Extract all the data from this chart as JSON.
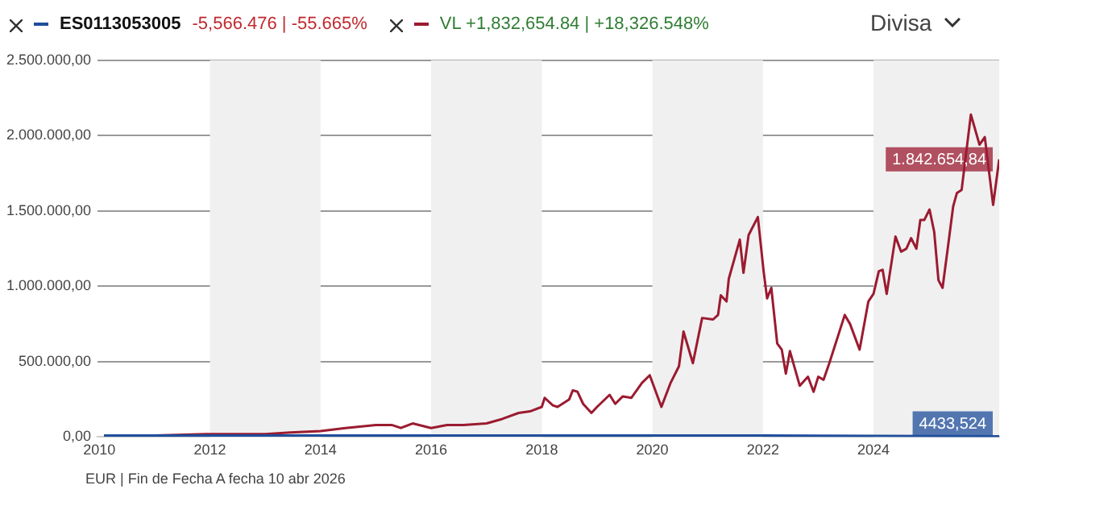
{
  "chart_data": {
    "type": "line",
    "legend": "top left",
    "grid": "y",
    "marker": "none",
    "line_style": "solid",
    "xlim": [
      "2009-12-20",
      "2026-04-10"
    ],
    "xticks": [
      "2010",
      "2012",
      "2014",
      "2016",
      "2018",
      "2020",
      "2022",
      "2024"
    ],
    "ylim": [
      0,
      2500000
    ],
    "yticks": [
      {
        "value": 0,
        "label": "0,00"
      },
      {
        "value": 500000,
        "label": "500.000,00"
      },
      {
        "value": 1000000,
        "label": "1.000.000,00"
      },
      {
        "value": 1500000,
        "label": "1.500.000,00"
      },
      {
        "value": 2000000,
        "label": "2.000.000,00"
      },
      {
        "value": 2500000,
        "label": "2.500.000,00"
      }
    ],
    "bands": [
      {
        "axis": "x",
        "from": "2012",
        "to": "2014",
        "color": "#f0f0f0"
      },
      {
        "axis": "x",
        "from": "2016",
        "to": "2018",
        "color": "#f0f0f0"
      },
      {
        "axis": "x",
        "from": "2020",
        "to": "2022",
        "color": "#f0f0f0"
      },
      {
        "axis": "x",
        "from": "2024",
        "to": "2026-04-10",
        "color": "#f0f0f0"
      }
    ],
    "annotations": [
      "-5,566.476 | -55.665%",
      "VL +1,832,654.84 | +18,326.548%",
      "Divisa",
      "EUR | Fin de Fecha A fecha 10 abr 2026",
      {
        "text": "1.842.654,84",
        "x": "2026-04-10",
        "y": 1842654.84
      },
      {
        "text": "4433,524",
        "x": "2026-04-10",
        "y": 4433.524
      }
    ],
    "series": [
      {
        "name": "ES0113053005",
        "color": "#1f4e9c",
        "x": [
          "2010-02-01",
          "2014-01-01",
          "2018-01-01",
          "2022-01-01",
          "2026-04-10"
        ],
        "values": [
          10000,
          10000,
          10000,
          10000,
          4433.524
        ]
      },
      {
        "color": "#9b1b30",
        "x": [
          "2010-02-01",
          "2011-01-01",
          "2012-01-01",
          "2013-01-01",
          "2013-06-15",
          "2014-01-01",
          "2014-06-15",
          "2015-01-01",
          "2015-04-15",
          "2015-06-15",
          "2015-09-01",
          "2016-01-01",
          "2016-04-15",
          "2016-08-01",
          "2017-01-01",
          "2017-04-15",
          "2017-08-01",
          "2017-10-15",
          "2018-01-01",
          "2018-01-20",
          "2018-03-15",
          "2018-04-15",
          "2018-07-01",
          "2018-07-25",
          "2018-08-25",
          "2018-10-01",
          "2018-11-25",
          "2019-01-01",
          "2019-03-25",
          "2019-05-01",
          "2019-06-20",
          "2019-08-15",
          "2019-10-25",
          "2019-12-15",
          "2020-03-01",
          "2020-05-01",
          "2020-06-25",
          "2020-07-25",
          "2020-09-25",
          "2020-11-25",
          "2021-02-05",
          "2021-03-10",
          "2021-03-28",
          "2021-05-05",
          "2021-05-20",
          "2021-08-01",
          "2021-08-25",
          "2021-09-28",
          "2021-11-28",
          "2022-01-05",
          "2022-01-28",
          "2022-02-25",
          "2022-04-05",
          "2022-05-05",
          "2022-06-01",
          "2022-06-28",
          "2022-09-01",
          "2022-10-25",
          "2022-12-01",
          "2023-01-01",
          "2023-02-05",
          "2023-03-15",
          "2023-06-25",
          "2023-07-30",
          "2023-10-01",
          "2023-11-28",
          "2024-01-01",
          "2024-02-05",
          "2024-03-01",
          "2024-03-28",
          "2024-05-25",
          "2024-07-01",
          "2024-08-05",
          "2024-09-05",
          "2024-10-10",
          "2024-11-05",
          "2024-12-01",
          "2025-01-05",
          "2025-02-05",
          "2025-03-05",
          "2025-04-01",
          "2025-05-05",
          "2025-06-10",
          "2025-07-05",
          "2025-08-05",
          "2025-10-05",
          "2025-12-01",
          "2026-01-05",
          "2026-03-01",
          "2026-04-10"
        ],
        "values": [
          10000,
          10000,
          20000,
          20000,
          30000,
          40000,
          60000,
          80000,
          80000,
          60000,
          90000,
          60000,
          80000,
          80000,
          90000,
          120000,
          160000,
          170000,
          200000,
          260000,
          210000,
          200000,
          250000,
          310000,
          300000,
          220000,
          160000,
          200000,
          280000,
          220000,
          270000,
          260000,
          360000,
          410000,
          200000,
          360000,
          470000,
          700000,
          490000,
          790000,
          780000,
          810000,
          940000,
          900000,
          1050000,
          1310000,
          1090000,
          1340000,
          1460000,
          1100000,
          920000,
          990000,
          620000,
          580000,
          420000,
          570000,
          340000,
          400000,
          300000,
          400000,
          380000,
          490000,
          810000,
          750000,
          580000,
          900000,
          950000,
          1100000,
          1110000,
          950000,
          1330000,
          1230000,
          1250000,
          1320000,
          1250000,
          1440000,
          1440000,
          1510000,
          1360000,
          1040000,
          990000,
          1250000,
          1530000,
          1620000,
          1640000,
          2140000,
          1940000,
          1990000,
          1540000,
          1842654.84
        ]
      }
    ]
  }
}
